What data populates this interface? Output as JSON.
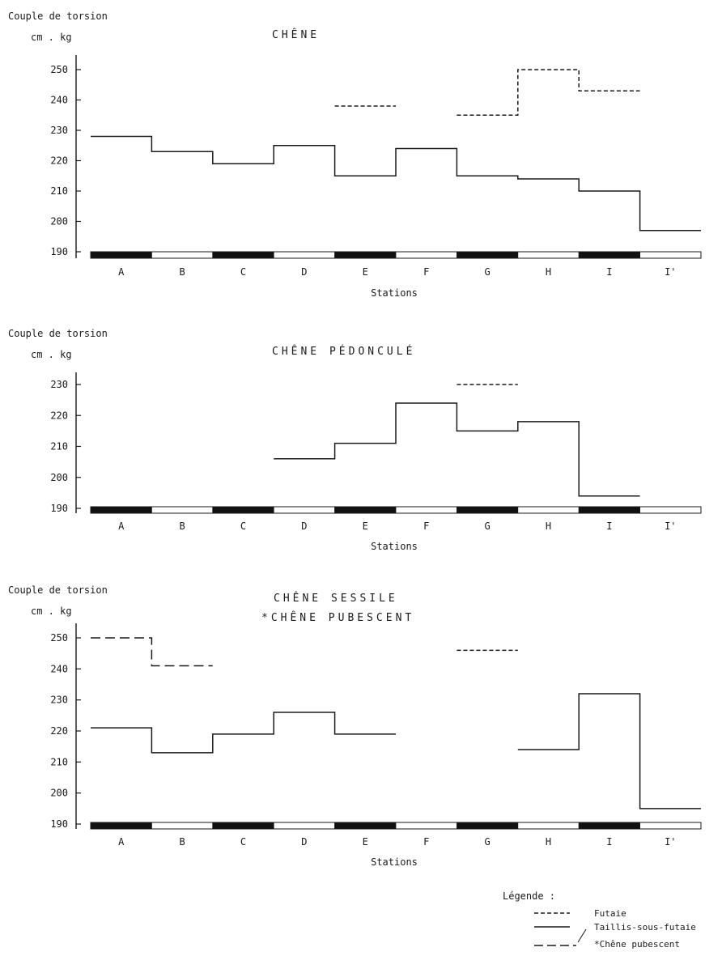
{
  "charts": [
    {
      "chart_data": {
        "type": "line",
        "style": "step",
        "title": [
          "CHÊNE"
        ],
        "ylabel": "Couple de torsion",
        "yunit": "cm . kg",
        "xlabel": "Stations",
        "categories": [
          "A",
          "B",
          "C",
          "D",
          "E",
          "F",
          "G",
          "H",
          "I",
          "I'"
        ],
        "ylim": [
          190,
          255
        ],
        "yticks": [
          190,
          200,
          210,
          220,
          230,
          240,
          250
        ],
        "grid": false,
        "series": [
          {
            "name": "Futaie",
            "style": "dashed",
            "values": [
              null,
              null,
              null,
              null,
              238,
              null,
              235,
              250,
              243,
              null
            ]
          },
          {
            "name": "Taillis-sous-futaie",
            "style": "solid",
            "values": [
              228,
              223,
              219,
              225,
              215,
              224,
              215,
              214,
              210,
              197
            ]
          }
        ]
      }
    },
    {
      "chart_data": {
        "type": "line",
        "style": "step",
        "title": [
          "CHÊNE  PÉDONCULÉ"
        ],
        "ylabel": "Couple de torsion",
        "yunit": "cm . kg",
        "xlabel": "Stations",
        "categories": [
          "A",
          "B",
          "C",
          "D",
          "E",
          "F",
          "G",
          "H",
          "I",
          "I'"
        ],
        "ylim": [
          190,
          235
        ],
        "yticks": [
          190,
          200,
          210,
          220,
          230
        ],
        "grid": false,
        "series": [
          {
            "name": "Futaie",
            "style": "dashed",
            "values": [
              null,
              null,
              null,
              null,
              null,
              null,
              230,
              null,
              null,
              null
            ]
          },
          {
            "name": "Taillis-sous-futaie",
            "style": "solid",
            "values": [
              null,
              null,
              null,
              206,
              211,
              224,
              215,
              218,
              194,
              null
            ]
          }
        ]
      }
    },
    {
      "chart_data": {
        "type": "line",
        "style": "step",
        "title": [
          "CHÊNE  SESSILE",
          "*CHÊNE  PUBESCENT"
        ],
        "ylabel": "Couple de torsion",
        "yunit": "cm . kg",
        "xlabel": "Stations",
        "categories": [
          "A",
          "B",
          "C",
          "D",
          "E",
          "F",
          "G",
          "H",
          "I",
          "I'"
        ],
        "ylim": [
          190,
          255
        ],
        "yticks": [
          190,
          200,
          210,
          220,
          230,
          240,
          250
        ],
        "grid": false,
        "series": [
          {
            "name": "Futaie",
            "style": "dashed",
            "values": [
              null,
              null,
              null,
              null,
              null,
              null,
              246,
              null,
              null,
              null
            ]
          },
          {
            "name": "Taillis-sous-futaie",
            "style": "solid",
            "values": [
              221,
              213,
              219,
              226,
              219,
              null,
              null,
              214,
              232,
              195
            ]
          },
          {
            "name": "Chêne pubescent",
            "style": "longdash",
            "values": [
              250,
              241,
              null,
              null,
              null,
              null,
              null,
              null,
              null,
              null
            ]
          }
        ]
      }
    }
  ],
  "legend": {
    "title": "Légende :",
    "items": [
      {
        "label": "Futaie",
        "style": "dashed"
      },
      {
        "label": "Taillis-sous-futaie",
        "style": "solid"
      },
      {
        "label": "*Chêne pubescent",
        "style": "longdash"
      }
    ]
  },
  "colors": {
    "ink": "#1a1a1a",
    "band_dark": "#111111",
    "band_light": "#ffffff",
    "background": "#ffffff"
  }
}
